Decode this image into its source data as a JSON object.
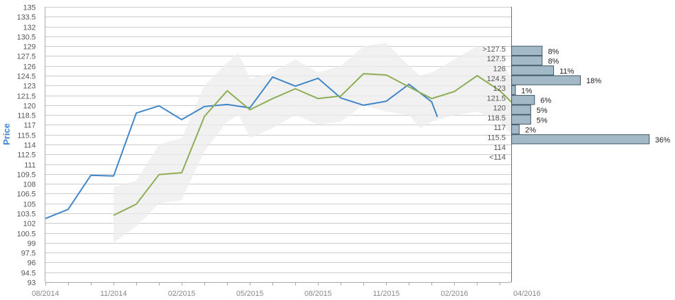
{
  "chart_data": {
    "type": "line",
    "ylabel": "Price",
    "xlabel": "",
    "ylim": [
      93,
      135
    ],
    "y_tick_step": 1.5,
    "x_tick_labels": [
      "08/2014",
      "11/2014",
      "02/2015",
      "05/2015",
      "08/2015",
      "11/2015",
      "02/2016",
      "04/2016"
    ],
    "x_range_index": [
      0,
      20.5
    ],
    "x_label_positions_index": [
      0,
      3,
      6,
      9,
      12,
      15,
      18,
      20.5
    ],
    "grid": true,
    "colors": {
      "price": "#3f86c9",
      "forecast": "#8cad52",
      "band": "#ececec",
      "grid": "#cccccc",
      "hist_bar": "#a3b9c8",
      "hist_border": "#3d5566"
    },
    "series": [
      {
        "key": "price",
        "x": [
          0,
          1,
          2,
          3,
          4,
          5,
          6,
          7,
          8,
          9,
          10,
          11,
          12,
          13,
          14,
          15,
          16,
          17,
          17.25
        ],
        "values": [
          102.7,
          104.1,
          109.3,
          109.2,
          118.8,
          119.9,
          117.8,
          119.8,
          120.1,
          119.6,
          124.3,
          122.9,
          124.1,
          121.1,
          120.0,
          120.6,
          123.2,
          120.5,
          118.2
        ]
      },
      {
        "key": "forecast",
        "x": [
          3,
          4,
          5,
          6,
          7,
          8,
          9,
          10,
          11,
          12,
          13,
          14,
          15,
          16,
          17,
          18,
          19,
          20,
          20.5
        ],
        "values": [
          103.2,
          104.9,
          109.4,
          109.7,
          118.3,
          122.2,
          119.3,
          121.0,
          122.5,
          121.0,
          121.4,
          124.8,
          124.6,
          122.8,
          121.0,
          122.1,
          124.5,
          122.2,
          120.5
        ]
      }
    ],
    "band": {
      "x": [
        3,
        4,
        5,
        6,
        7,
        8,
        8.5,
        9,
        10,
        11,
        12,
        13,
        14,
        15,
        16,
        16.5,
        17,
        18,
        19,
        20,
        20.5
      ],
      "upper": [
        107.5,
        108.5,
        114.0,
        115.0,
        123.0,
        126.5,
        128.0,
        124.0,
        125.0,
        127.0,
        125.0,
        126.0,
        129.0,
        129.5,
        126.0,
        124.5,
        125.0,
        127.0,
        129.0,
        127.5,
        124.0
      ],
      "lower": [
        99.0,
        101.5,
        105.0,
        105.5,
        113.0,
        117.5,
        118.5,
        115.0,
        116.5,
        118.5,
        117.0,
        117.5,
        120.0,
        119.0,
        118.5,
        116.5,
        117.5,
        118.5,
        119.0,
        117.5,
        115.5
      ]
    },
    "histogram": {
      "categories": [
        ">127.5",
        "127.5",
        "126",
        "124.5",
        "123",
        "121.5",
        "120",
        "118.5",
        "117",
        "115.5",
        "114",
        "<114"
      ],
      "bin_centers": [
        128.25,
        126.75,
        125.25,
        123.75,
        122.25,
        120.75,
        119.25,
        117.75,
        116.25,
        114.75,
        null,
        null
      ],
      "values": [
        8,
        8,
        11,
        18,
        1,
        6,
        5,
        5,
        2,
        36,
        null,
        null
      ],
      "labels": [
        "8%",
        "8%",
        "11%",
        "18%",
        "1%",
        "6%",
        "5%",
        "5%",
        "2%",
        "36%",
        "",
        ""
      ]
    }
  }
}
